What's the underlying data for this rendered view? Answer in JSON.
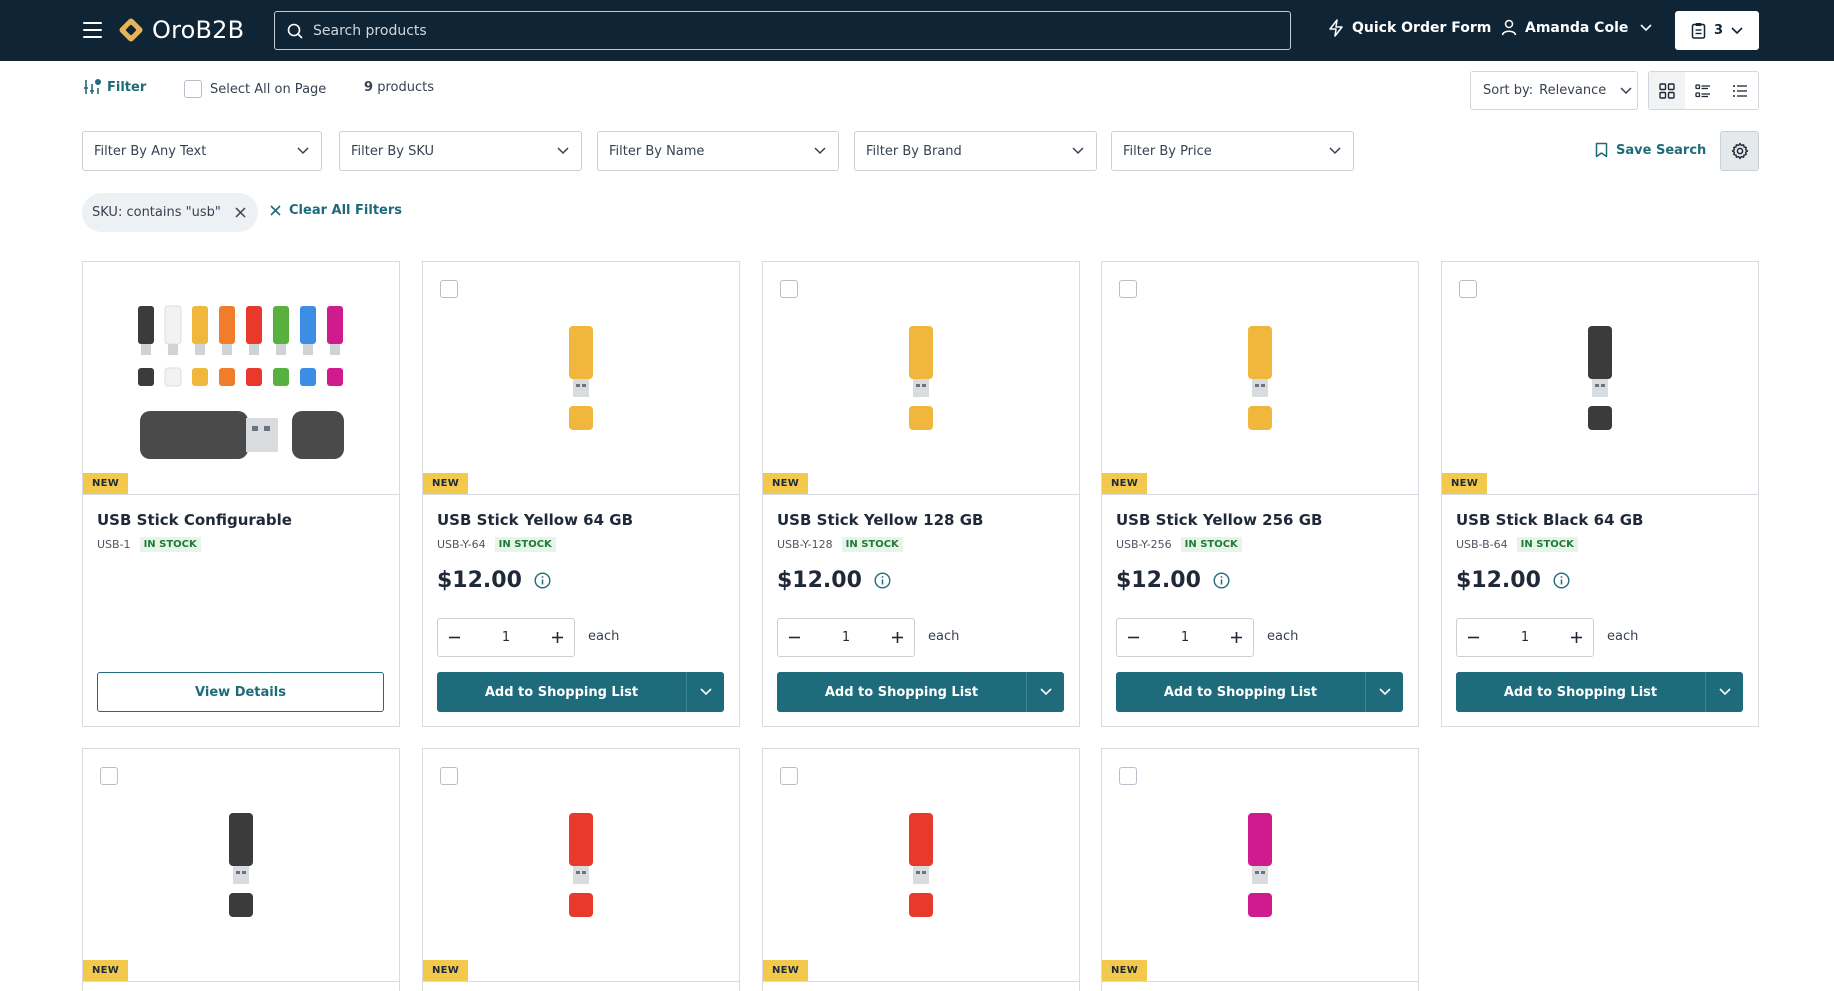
{
  "header": {
    "logo": "OroB2B",
    "search_placeholder": "Search products",
    "quick_order": "Quick Order Form",
    "user_name": "Amanda Cole",
    "cart_count": "3"
  },
  "toolbar": {
    "filter_label": "Filter",
    "select_all_label": "Select All on Page",
    "product_count": "9",
    "product_count_suffix": "products",
    "sort_label": "Sort by:",
    "sort_value": "Relevance"
  },
  "filters": {
    "any_text": "Filter By Any Text",
    "sku": "Filter By SKU",
    "name": "Filter By Name",
    "brand": "Filter By Brand",
    "price": "Filter By Price",
    "save_search": "Save Search"
  },
  "active_filters": {
    "chip_label": "SKU:",
    "chip_value": "contains \"usb\"",
    "clear_all": "Clear All Filters"
  },
  "products": [
    {
      "title": "USB Stick Configurable",
      "sku": "USB-1",
      "stock": "IN STOCK",
      "badge": "NEW",
      "action": "View Details"
    },
    {
      "title": "USB Stick Yellow 64 GB",
      "sku": "USB-Y-64",
      "stock": "IN STOCK",
      "badge": "NEW",
      "price": "$12.00",
      "qty": "1",
      "unit": "each",
      "action": "Add to Shopping List",
      "color": "#f1b63c"
    },
    {
      "title": "USB Stick Yellow 128 GB",
      "sku": "USB-Y-128",
      "stock": "IN STOCK",
      "badge": "NEW",
      "price": "$12.00",
      "qty": "1",
      "unit": "each",
      "action": "Add to Shopping List",
      "color": "#f1b63c"
    },
    {
      "title": "USB Stick Yellow 256 GB",
      "sku": "USB-Y-256",
      "stock": "IN STOCK",
      "badge": "NEW",
      "price": "$12.00",
      "qty": "1",
      "unit": "each",
      "action": "Add to Shopping List",
      "color": "#f1b63c"
    },
    {
      "title": "USB Stick Black 64 GB",
      "sku": "USB-B-64",
      "stock": "IN STOCK",
      "badge": "NEW",
      "price": "$12.00",
      "qty": "1",
      "unit": "each",
      "action": "Add to Shopping List",
      "color": "#3b3b3b"
    },
    {
      "badge": "NEW",
      "color": "#3b3b3b"
    },
    {
      "badge": "NEW",
      "color": "#e8392c"
    },
    {
      "badge": "NEW",
      "color": "#e8392c"
    },
    {
      "badge": "NEW",
      "color": "#d01b8f"
    }
  ],
  "colors": {
    "header_bg": "#0f2434",
    "accent": "#1e6b7b",
    "badge": "#f2c94c",
    "stock_bg": "#e6f4ea"
  }
}
